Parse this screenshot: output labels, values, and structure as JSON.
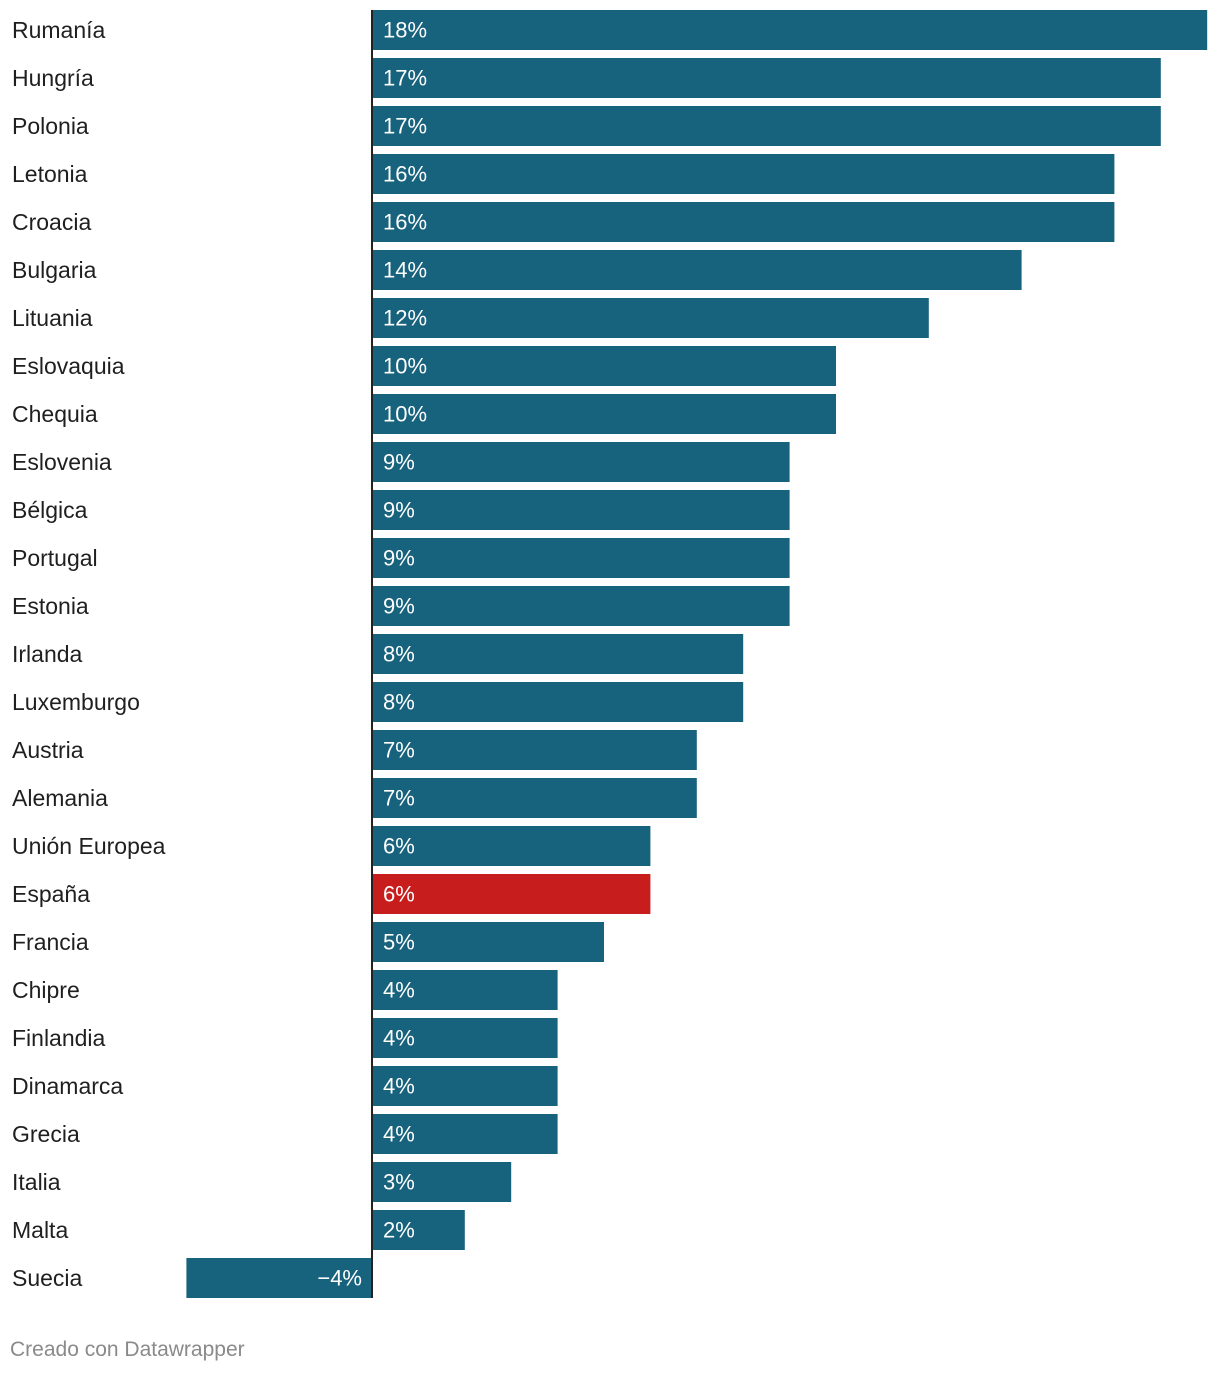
{
  "chart_data": {
    "type": "bar",
    "orientation": "horizontal",
    "title": "",
    "xlabel": "",
    "ylabel": "",
    "xlim": [
      -4,
      18
    ],
    "grid": false,
    "categories": [
      "Rumanía",
      "Hungría",
      "Polonia",
      "Letonia",
      "Croacia",
      "Bulgaria",
      "Lituania",
      "Eslovaquia",
      "Chequia",
      "Eslovenia",
      "Bélgica",
      "Portugal",
      "Estonia",
      "Irlanda",
      "Luxemburgo",
      "Austria",
      "Alemania",
      "Unión Europea",
      "España",
      "Francia",
      "Chipre",
      "Finlandia",
      "Dinamarca",
      "Grecia",
      "Italia",
      "Malta",
      "Suecia"
    ],
    "values": [
      18,
      17,
      17,
      16,
      16,
      14,
      12,
      10,
      10,
      9,
      9,
      9,
      9,
      8,
      8,
      7,
      7,
      6,
      6,
      5,
      4,
      4,
      4,
      4,
      3,
      2,
      -4
    ],
    "value_labels": [
      "18%",
      "17%",
      "17%",
      "16%",
      "16%",
      "14%",
      "12%",
      "10%",
      "10%",
      "9%",
      "9%",
      "9%",
      "9%",
      "8%",
      "8%",
      "7%",
      "7%",
      "6%",
      "6%",
      "5%",
      "4%",
      "4%",
      "4%",
      "4%",
      "3%",
      "2%",
      "−4%"
    ],
    "highlight": "España",
    "colors": {
      "bar": "#17627c",
      "highlight": "#c71e1d",
      "axis": "#222222"
    }
  },
  "credit": "Creado con Datawrapper"
}
